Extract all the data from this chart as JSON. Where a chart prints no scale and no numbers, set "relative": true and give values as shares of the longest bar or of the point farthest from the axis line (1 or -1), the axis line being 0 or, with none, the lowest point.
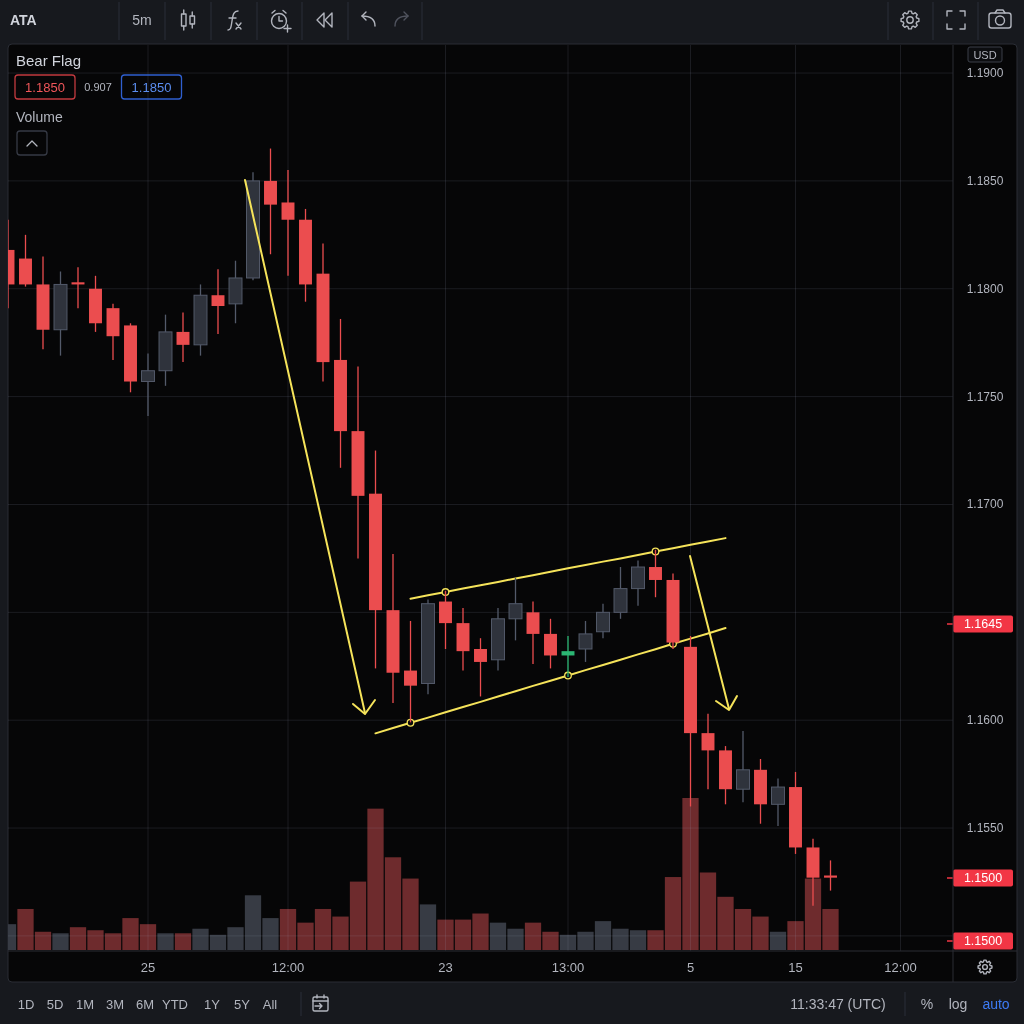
{
  "chart_data": [
    {
      "type": "candlestick",
      "title": "Bear Flag",
      "ylabel": "USD",
      "categories": [
        null,
        null,
        null,
        null,
        null,
        null,
        null,
        null,
        "25",
        null,
        null,
        null,
        null,
        null,
        null,
        null,
        "12:00",
        null,
        null,
        null,
        null,
        null,
        null,
        null,
        null,
        "23",
        null,
        null,
        null,
        null,
        null,
        null,
        "13:00",
        null,
        null,
        null,
        null,
        null,
        null,
        "5",
        null,
        null,
        null,
        null,
        null,
        "15",
        null,
        null,
        null,
        null,
        null,
        "12:00"
      ],
      "ylim": [
        1.1493,
        1.1913
      ],
      "yticks": [
        {
          "value": 1.15,
          "label": null
        },
        {
          "value": 1.155,
          "label": "1.1550"
        },
        {
          "value": 1.16,
          "label": "1.1600"
        },
        {
          "value": 1.165,
          "label": null
        },
        {
          "value": 1.17,
          "label": "1.1700"
        },
        {
          "value": 1.175,
          "label": "1.1750"
        },
        {
          "value": 1.18,
          "label": "1.1800"
        },
        {
          "value": 1.185,
          "label": "1.1850"
        },
        {
          "value": 1.19,
          "label": "1.1900"
        }
      ],
      "grid": true,
      "ohlc": [
        [
          1.1818,
          1.1832,
          1.1791,
          1.1802
        ],
        [
          1.1814,
          1.1825,
          1.1801,
          1.1802
        ],
        [
          1.1802,
          1.1815,
          1.1772,
          1.1781
        ],
        [
          1.1781,
          1.1808,
          1.1769,
          1.1802
        ],
        [
          1.1803,
          1.181,
          1.1791,
          1.1802
        ],
        [
          1.18,
          1.1806,
          1.178,
          1.1784
        ],
        [
          1.1791,
          1.1793,
          1.1767,
          1.1778
        ],
        [
          1.1783,
          1.1784,
          1.1752,
          1.1757
        ],
        [
          1.1757,
          1.177,
          1.1741,
          1.1762
        ],
        [
          1.1762,
          1.1788,
          1.1755,
          1.178
        ],
        [
          1.178,
          1.1789,
          1.1766,
          1.1774
        ],
        [
          1.1774,
          1.1802,
          1.1769,
          1.1797
        ],
        [
          1.1797,
          1.1809,
          1.1779,
          1.1792
        ],
        [
          1.1793,
          1.1813,
          1.1784,
          1.1805
        ],
        [
          1.1805,
          1.1854,
          1.1804,
          1.185
        ],
        [
          1.185,
          1.1865,
          1.1816,
          1.1839
        ],
        [
          1.184,
          1.1855,
          1.1806,
          1.1832
        ],
        [
          1.1832,
          1.1837,
          1.1794,
          1.1802
        ],
        [
          1.1807,
          1.1821,
          1.1757,
          1.1766
        ],
        [
          1.1767,
          1.1786,
          1.1717,
          1.1734
        ],
        [
          1.1734,
          1.1764,
          1.1675,
          1.1704
        ],
        [
          1.1705,
          1.1725,
          1.1624,
          1.1651
        ],
        [
          1.1651,
          1.1677,
          1.1608,
          1.1622
        ],
        [
          1.1623,
          1.1646,
          1.1599,
          1.1616
        ],
        [
          1.1617,
          1.1656,
          1.1612,
          1.1654
        ],
        [
          1.1655,
          1.166,
          1.1633,
          1.1645
        ],
        [
          1.1645,
          1.1652,
          1.1623,
          1.1632
        ],
        [
          1.1633,
          1.1638,
          1.1611,
          1.1627
        ],
        [
          1.1628,
          1.1652,
          1.1623,
          1.1647
        ],
        [
          1.1647,
          1.1666,
          1.1637,
          1.1654
        ],
        [
          1.165,
          1.1655,
          1.1626,
          1.164
        ],
        [
          1.164,
          1.1647,
          1.1624,
          1.163
        ],
        [
          1.163,
          1.1639,
          1.162,
          1.1632
        ],
        [
          1.1633,
          1.1646,
          1.1627,
          1.164
        ],
        [
          1.1641,
          1.1654,
          1.1638,
          1.165
        ],
        [
          1.165,
          1.1671,
          1.1647,
          1.1661
        ],
        [
          1.1661,
          1.1674,
          1.1653,
          1.1671
        ],
        [
          1.1671,
          1.1679,
          1.1657,
          1.1665
        ],
        [
          1.1665,
          1.1668,
          1.1633,
          1.1636
        ],
        [
          1.1634,
          1.1639,
          1.156,
          1.1594
        ],
        [
          1.1594,
          1.1603,
          1.1568,
          1.1586
        ],
        [
          1.1586,
          1.1588,
          1.1561,
          1.1568
        ],
        [
          1.1568,
          1.1595,
          1.1562,
          1.1577
        ],
        [
          1.1577,
          1.1582,
          1.1552,
          1.1561
        ],
        [
          1.1561,
          1.1573,
          1.1551,
          1.1569
        ],
        [
          1.1569,
          1.1576,
          1.1538,
          1.1541
        ],
        [
          1.1541,
          1.1545,
          1.1514,
          1.1527
        ],
        [
          1.1528,
          1.1535,
          1.1521,
          1.1527
        ],
        null,
        null,
        null,
        null
      ],
      "colors": [
        "#eb4d4f",
        "#eb4d4f",
        "#eb4d4f",
        "#2f333c",
        "#eb4d4f",
        "#eb4d4f",
        "#eb4d4f",
        "#eb4d4f",
        "#2f333c",
        "#2f333c",
        "#eb4d4f",
        "#2f333c",
        "#eb4d4f",
        "#2f333c",
        "#2f333c",
        "#eb4d4f",
        "#eb4d4f",
        "#eb4d4f",
        "#eb4d4f",
        "#eb4d4f",
        "#eb4d4f",
        "#eb4d4f",
        "#eb4d4f",
        "#eb4d4f",
        "#2f333c",
        "#eb4d4f",
        "#eb4d4f",
        "#eb4d4f",
        "#2f333c",
        "#2f333c",
        "#eb4d4f",
        "#eb4d4f",
        "#2bb673",
        "#2f333c",
        "#2f333c",
        "#2f333c",
        "#2f333c",
        "#eb4d4f",
        "#eb4d4f",
        "#eb4d4f",
        "#eb4d4f",
        "#eb4d4f",
        "#2f333c",
        "#eb4d4f",
        "#2f333c",
        "#eb4d4f",
        "#eb4d4f",
        "#eb4d4f",
        null,
        null,
        null,
        null
      ],
      "series": [
        {
          "type": "line",
          "color": "#f5e35a",
          "values": [
            null,
            null,
            null,
            null,
            null,
            null,
            null,
            null,
            null,
            null,
            null,
            null,
            null,
            null,
            null,
            null,
            null,
            null,
            null,
            null,
            null,
            null,
            null,
            1.16563,
            1.16579,
            1.16594,
            1.1661,
            1.16626,
            1.16641,
            1.16657,
            1.16672,
            1.16688,
            1.16704,
            1.16719,
            1.16735,
            1.1675,
            1.16766,
            1.16782,
            1.16797,
            1.16813,
            1.16828,
            1.16844,
            null,
            null,
            null,
            null,
            null,
            null,
            null,
            null,
            null,
            null
          ]
        },
        {
          "type": "line",
          "color": "#f5e35a",
          "values": [
            null,
            null,
            null,
            null,
            null,
            null,
            null,
            null,
            null,
            null,
            null,
            null,
            null,
            null,
            null,
            null,
            null,
            null,
            null,
            null,
            null,
            1.15939,
            1.15964,
            1.15988,
            1.16012,
            1.16037,
            1.16061,
            1.16085,
            1.1611,
            1.16134,
            1.16159,
            1.16183,
            1.16207,
            1.16232,
            1.16256,
            1.1628,
            1.16305,
            1.16329,
            1.16354,
            1.16378,
            1.16402,
            1.16427,
            null,
            null,
            null,
            null,
            null,
            null,
            null,
            null,
            null,
            null
          ]
        },
        {
          "type": "scatter",
          "color": "#f5e35a",
          "marker": "circle",
          "values": [
            null,
            null,
            null,
            null,
            null,
            null,
            null,
            null,
            null,
            null,
            null,
            null,
            null,
            null,
            null,
            null,
            null,
            null,
            null,
            null,
            null,
            null,
            null,
            1.15988,
            null,
            1.16594,
            null,
            null,
            null,
            null,
            null,
            null,
            1.16207,
            null,
            null,
            null,
            null,
            1.16782,
            1.16354,
            null,
            null,
            null,
            null,
            null,
            null,
            null,
            null,
            null,
            null,
            null,
            null,
            null
          ]
        }
      ],
      "annotations": [
        "ATA",
        "5m",
        "1.1850",
        "0.907",
        "1.1850",
        "1.1645",
        "1.1500",
        "1.1500",
        "1D",
        "5D",
        "1M",
        "3M",
        "6M",
        "YTD",
        "1Y",
        "5Y",
        "All",
        "11:33:47 (UTC)",
        "%",
        "log",
        "auto"
      ]
    },
    {
      "type": "bar",
      "relative": true,
      "legend": "top left",
      "categories": [
        null,
        null,
        null,
        null,
        null,
        null,
        null,
        null,
        null,
        null,
        null,
        null,
        null,
        null,
        null,
        null,
        null,
        null,
        null,
        null,
        null,
        null,
        null,
        null,
        null,
        null,
        null,
        null,
        null,
        null,
        null,
        null,
        null,
        null,
        null,
        null,
        null,
        null,
        null,
        null,
        null,
        null,
        null,
        null,
        null,
        null,
        null,
        null,
        null,
        null,
        null,
        null
      ],
      "series": [
        {
          "name": "Volume",
          "values": [
            0.17,
            0.27,
            0.12,
            0.11,
            0.15,
            0.13,
            0.11,
            0.21,
            0.17,
            0.11,
            0.11,
            0.14,
            0.1,
            0.15,
            0.36,
            0.21,
            0.27,
            0.18,
            0.27,
            0.22,
            0.45,
            0.93,
            0.61,
            0.47,
            0.3,
            0.2,
            0.2,
            0.24,
            0.18,
            0.14,
            0.18,
            0.12,
            0.1,
            0.12,
            0.19,
            0.14,
            0.13,
            0.13,
            0.48,
            1,
            0.51,
            0.35,
            0.27,
            0.22,
            0.12,
            0.19,
            0.47,
            0.27,
            null,
            null,
            null,
            null
          ],
          "colors": [
            "#373b44",
            "#6e2b2d",
            "#6e2b2d",
            "#373b44",
            "#6e2b2d",
            "#6e2b2d",
            "#6e2b2d",
            "#6e2b2d",
            "#6e2b2d",
            "#373b44",
            "#6e2b2d",
            "#373b44",
            "#373b44",
            "#373b44",
            "#373b44",
            "#373b44",
            "#6e2b2d",
            "#6e2b2d",
            "#6e2b2d",
            "#6e2b2d",
            "#6e2b2d",
            "#6e2b2d",
            "#6e2b2d",
            "#6e2b2d",
            "#373b44",
            "#6e2b2d",
            "#6e2b2d",
            "#6e2b2d",
            "#373b44",
            "#373b44",
            "#6e2b2d",
            "#6e2b2d",
            "#373b44",
            "#373b44",
            "#373b44",
            "#373b44",
            "#373b44",
            "#6e2b2d",
            "#6e2b2d",
            "#6e2b2d",
            "#6e2b2d",
            "#6e2b2d",
            "#6e2b2d",
            "#6e2b2d",
            "#373b44",
            "#6e2b2d",
            "#6e2b2d",
            "#6e2b2d",
            null,
            null,
            null,
            null
          ]
        }
      ]
    }
  ]
}
